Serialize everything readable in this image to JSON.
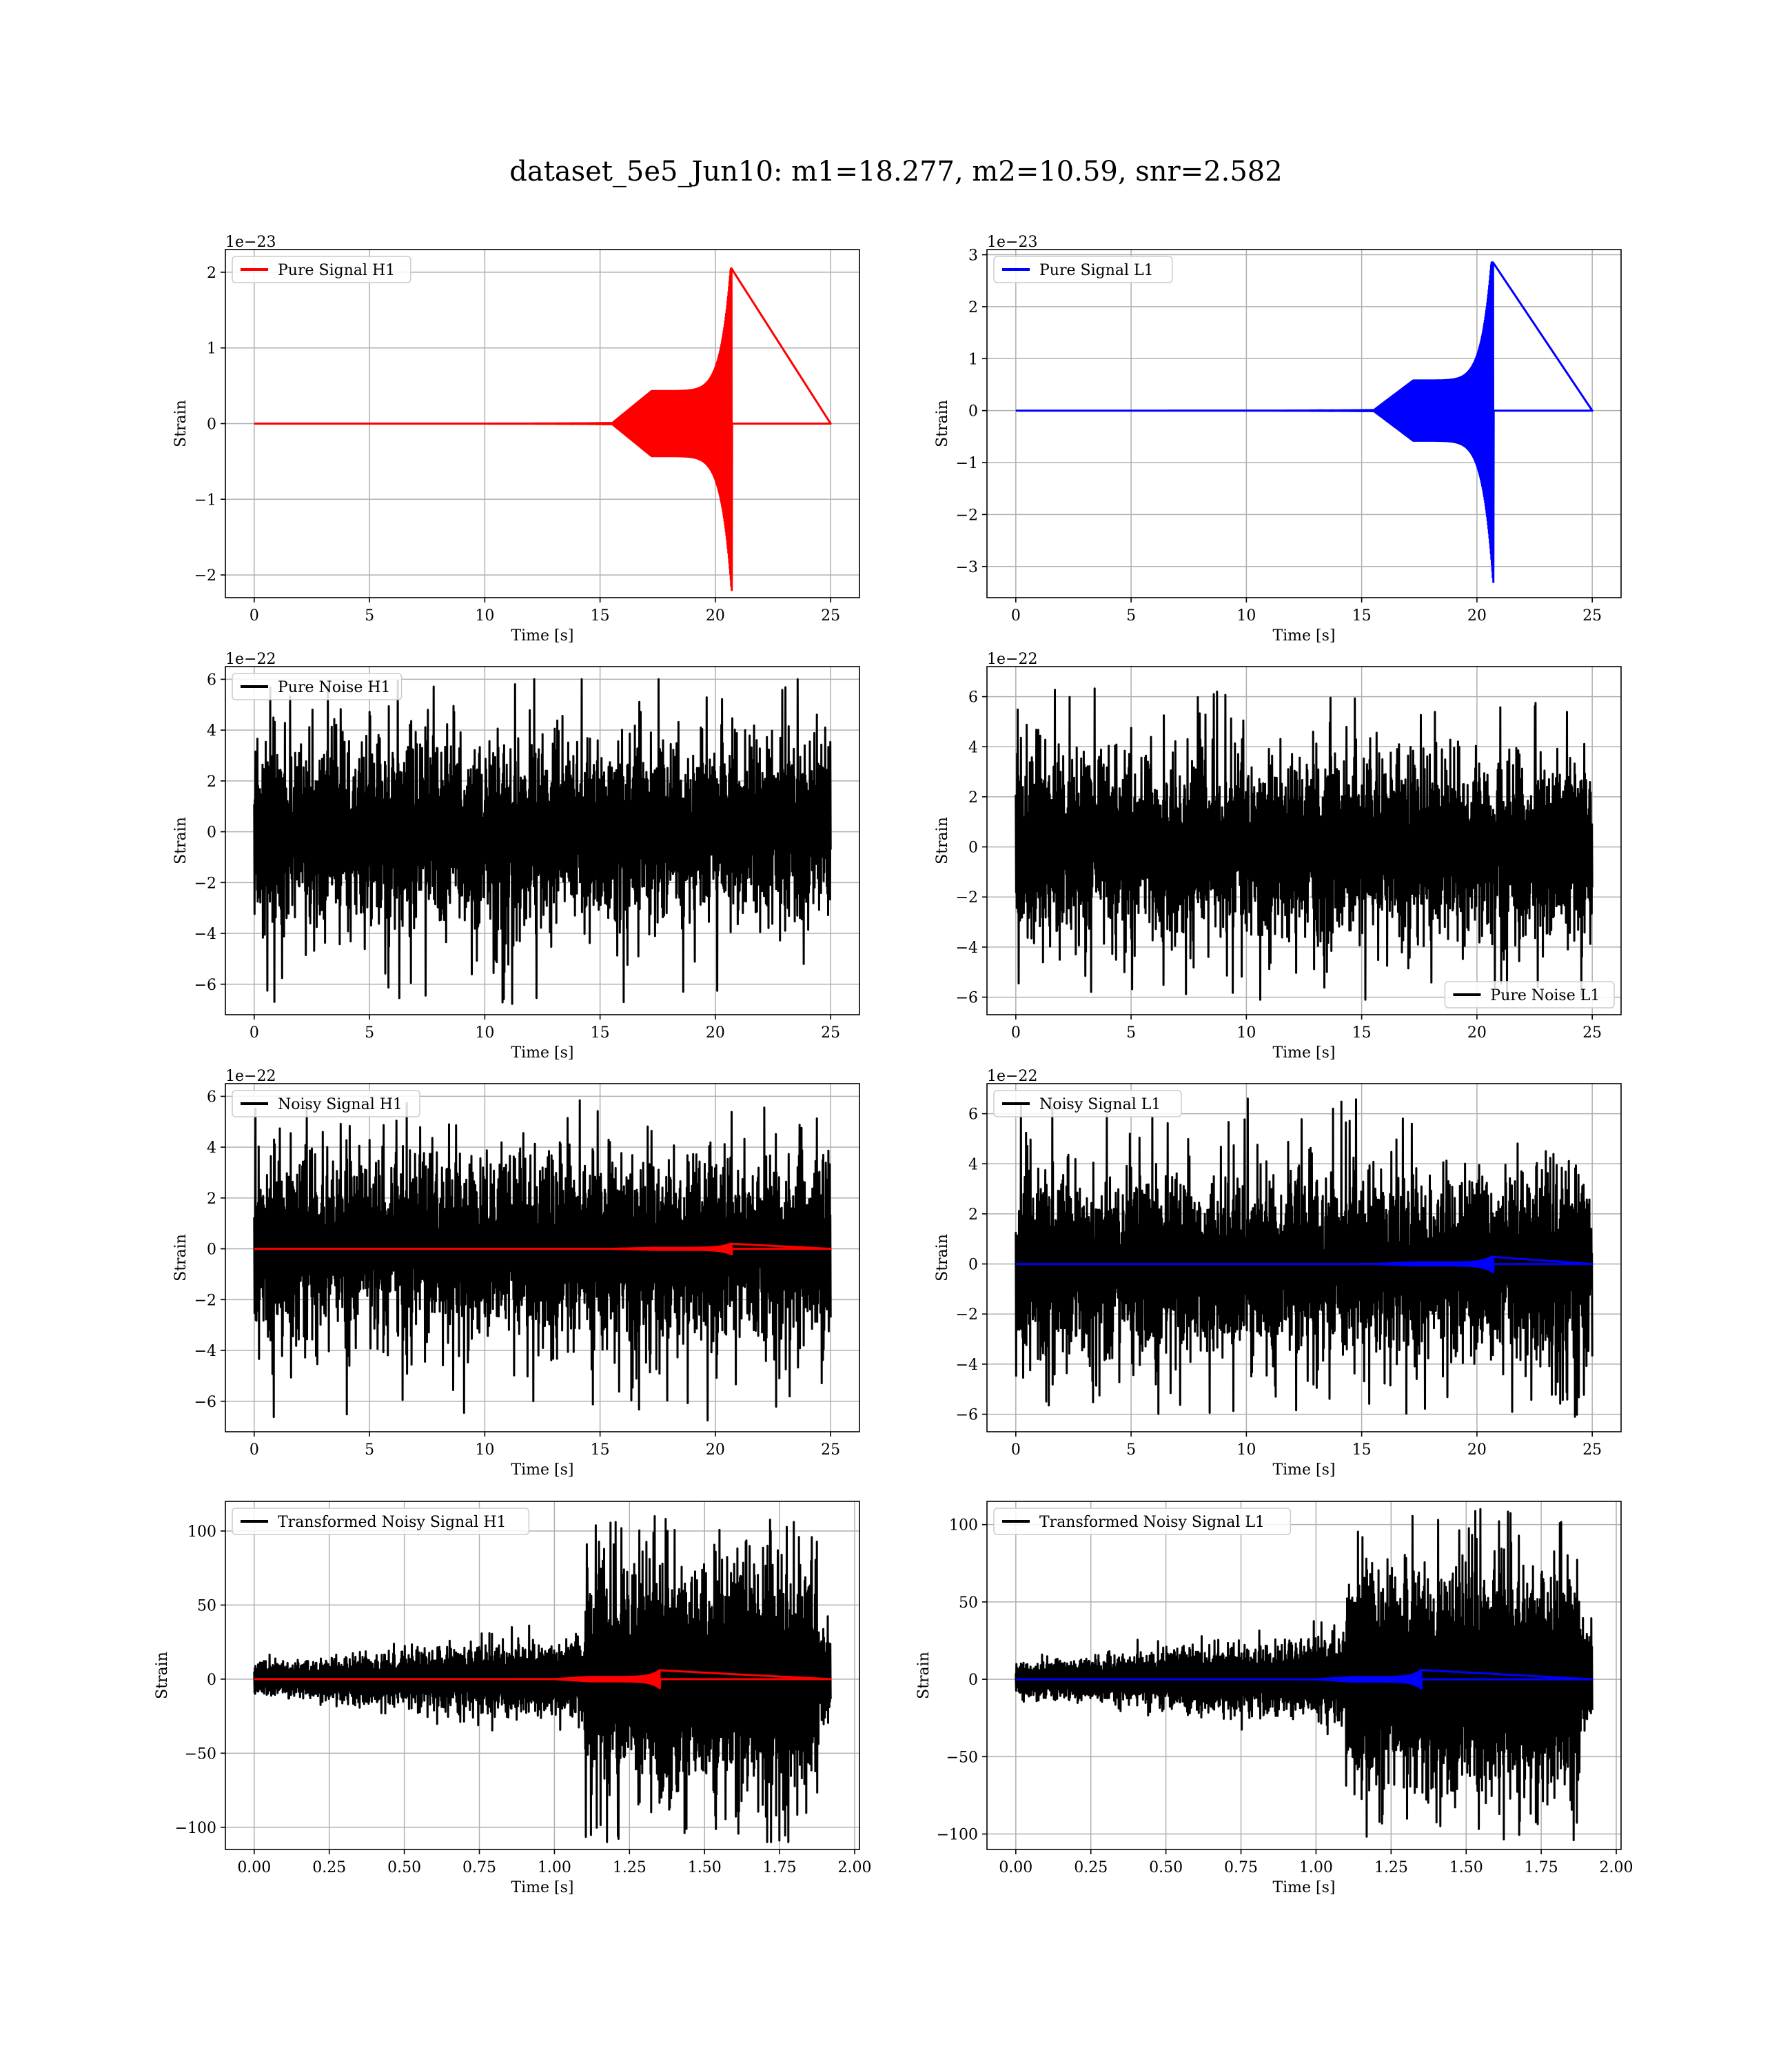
{
  "figure": {
    "suptitle": "dataset_5e5_Jun10: m1=18.277, m2=10.59, snr=2.582",
    "colors": {
      "h1_signal": "#ff0000",
      "l1_signal": "#0000ff",
      "noise": "#000000",
      "grid": "#b0b0b0"
    }
  },
  "chart_data": [
    {
      "id": "pure-signal-h1",
      "type": "line",
      "xlabel": "Time [s]",
      "ylabel": "Strain",
      "offset_text": "1e−23",
      "xlim": [
        -1.25,
        26.25
      ],
      "ylim": [
        -2.3,
        2.3
      ],
      "xticks": [
        0,
        5,
        10,
        15,
        20,
        25
      ],
      "xtick_labels": [
        "0",
        "5",
        "10",
        "15",
        "20",
        "25"
      ],
      "yticks": [
        -2,
        -1,
        0,
        1,
        2
      ],
      "ytick_labels": [
        "−2",
        "−1",
        "0",
        "1",
        "2"
      ],
      "grid": true,
      "legend_loc": "upper-left",
      "series": [
        {
          "name": "Pure Signal H1",
          "color": "#ff0000",
          "kind": "chirp",
          "x_range": [
            0,
            25
          ],
          "merger_time": 20.7,
          "peak_pos": 2.05,
          "peak_neg": -2.2,
          "plateau_start": 15.5,
          "plateau_amp": 0.43
        }
      ]
    },
    {
      "id": "pure-signal-l1",
      "type": "line",
      "xlabel": "Time [s]",
      "ylabel": "Strain",
      "offset_text": "1e−23",
      "xlim": [
        -1.25,
        26.25
      ],
      "ylim": [
        -3.6,
        3.1
      ],
      "xticks": [
        0,
        5,
        10,
        15,
        20,
        25
      ],
      "xtick_labels": [
        "0",
        "5",
        "10",
        "15",
        "20",
        "25"
      ],
      "yticks": [
        -3,
        -2,
        -1,
        0,
        1,
        2,
        3
      ],
      "ytick_labels": [
        "−3",
        "−2",
        "−1",
        "0",
        "1",
        "2",
        "3"
      ],
      "grid": true,
      "legend_loc": "upper-left",
      "series": [
        {
          "name": "Pure Signal L1",
          "color": "#0000ff",
          "kind": "chirp",
          "x_range": [
            0,
            25
          ],
          "merger_time": 20.7,
          "peak_pos": 2.85,
          "peak_neg": -3.3,
          "plateau_start": 15.5,
          "plateau_amp": 0.58
        }
      ]
    },
    {
      "id": "pure-noise-h1",
      "type": "line",
      "xlabel": "Time [s]",
      "ylabel": "Strain",
      "offset_text": "1e−22",
      "xlim": [
        -1.25,
        26.25
      ],
      "ylim": [
        -7.2,
        6.5
      ],
      "xticks": [
        0,
        5,
        10,
        15,
        20,
        25
      ],
      "xtick_labels": [
        "0",
        "5",
        "10",
        "15",
        "20",
        "25"
      ],
      "yticks": [
        -6,
        -4,
        -2,
        0,
        2,
        4,
        6
      ],
      "ytick_labels": [
        "−6",
        "−4",
        "−2",
        "0",
        "2",
        "4",
        "6"
      ],
      "grid": true,
      "legend_loc": "upper-left",
      "series": [
        {
          "name": "Pure Noise H1",
          "color": "#000000",
          "kind": "noise",
          "x_range": [
            0,
            25
          ],
          "band": 3.4,
          "max": 6.0,
          "min": -6.9
        }
      ]
    },
    {
      "id": "pure-noise-l1",
      "type": "line",
      "xlabel": "Time [s]",
      "ylabel": "Strain",
      "offset_text": "1e−22",
      "xlim": [
        -1.25,
        26.25
      ],
      "ylim": [
        -6.7,
        7.2
      ],
      "xticks": [
        0,
        5,
        10,
        15,
        20,
        25
      ],
      "xtick_labels": [
        "0",
        "5",
        "10",
        "15",
        "20",
        "25"
      ],
      "yticks": [
        -6,
        -4,
        -2,
        0,
        2,
        4,
        6
      ],
      "ytick_labels": [
        "−6",
        "−4",
        "−2",
        "0",
        "2",
        "4",
        "6"
      ],
      "grid": true,
      "legend_loc": "lower-right",
      "series": [
        {
          "name": "Pure Noise L1",
          "color": "#000000",
          "kind": "noise",
          "x_range": [
            0,
            25
          ],
          "band": 3.5,
          "max": 6.6,
          "min": -6.1
        }
      ]
    },
    {
      "id": "noisy-signal-h1",
      "type": "line",
      "xlabel": "Time [s]",
      "ylabel": "Strain",
      "offset_text": "1e−22",
      "xlim": [
        -1.25,
        26.25
      ],
      "ylim": [
        -7.2,
        6.5
      ],
      "xticks": [
        0,
        5,
        10,
        15,
        20,
        25
      ],
      "xtick_labels": [
        "0",
        "5",
        "10",
        "15",
        "20",
        "25"
      ],
      "yticks": [
        -6,
        -4,
        -2,
        0,
        2,
        4,
        6
      ],
      "ytick_labels": [
        "−6",
        "−4",
        "−2",
        "0",
        "2",
        "4",
        "6"
      ],
      "grid": true,
      "legend_loc": "upper-left",
      "series": [
        {
          "name": "Noisy Signal H1",
          "color": "#000000",
          "kind": "noise",
          "x_range": [
            0,
            25
          ],
          "band": 3.4,
          "max": 6.0,
          "min": -6.9
        },
        {
          "name": "",
          "color": "#ff0000",
          "kind": "chirp",
          "x_range": [
            0,
            25
          ],
          "merger_time": 20.7,
          "peak_pos": 0.2,
          "peak_neg": -0.22,
          "plateau_start": 15.5,
          "plateau_amp": 0.04
        }
      ]
    },
    {
      "id": "noisy-signal-l1",
      "type": "line",
      "xlabel": "Time [s]",
      "ylabel": "Strain",
      "offset_text": "1e−22",
      "xlim": [
        -1.25,
        26.25
      ],
      "ylim": [
        -6.7,
        7.2
      ],
      "xticks": [
        0,
        5,
        10,
        15,
        20,
        25
      ],
      "xtick_labels": [
        "0",
        "5",
        "10",
        "15",
        "20",
        "25"
      ],
      "yticks": [
        -6,
        -4,
        -2,
        0,
        2,
        4,
        6
      ],
      "ytick_labels": [
        "−6",
        "−4",
        "−2",
        "0",
        "2",
        "4",
        "6"
      ],
      "grid": true,
      "legend_loc": "upper-left",
      "series": [
        {
          "name": "Noisy Signal L1",
          "color": "#000000",
          "kind": "noise",
          "x_range": [
            0,
            25
          ],
          "band": 3.5,
          "max": 6.6,
          "min": -6.1
        },
        {
          "name": "",
          "color": "#0000ff",
          "kind": "chirp",
          "x_range": [
            0,
            25
          ],
          "merger_time": 20.7,
          "peak_pos": 0.28,
          "peak_neg": -0.33,
          "plateau_start": 15.5,
          "plateau_amp": 0.06
        }
      ]
    },
    {
      "id": "transformed-noisy-signal-h1",
      "type": "line",
      "xlabel": "Time [s]",
      "ylabel": "Strain",
      "offset_text": "",
      "xlim": [
        -0.096,
        2.016
      ],
      "ylim": [
        -115,
        120
      ],
      "xticks": [
        0,
        0.25,
        0.5,
        0.75,
        1.0,
        1.25,
        1.5,
        1.75,
        2.0
      ],
      "xtick_labels": [
        "0.00",
        "0.25",
        "0.50",
        "0.75",
        "1.00",
        "1.25",
        "1.50",
        "1.75",
        "2.00"
      ],
      "yticks": [
        -100,
        -50,
        0,
        50,
        100
      ],
      "ytick_labels": [
        "−100",
        "−50",
        "0",
        "50",
        "100"
      ],
      "grid": true,
      "legend_loc": "upper-left",
      "series": [
        {
          "name": "Transformed Noisy Signal H1",
          "color": "#000000",
          "kind": "transformed",
          "x_range": [
            0,
            1.92
          ],
          "low_amp_start": 6,
          "low_amp_end": 22,
          "burst_start": 1.1,
          "burst_end": 1.88,
          "burst_band": 40,
          "max": 110,
          "min": -110
        },
        {
          "name": "",
          "color": "#ff0000",
          "kind": "chirp",
          "x_range": [
            0,
            1.92
          ],
          "merger_time": 1.35,
          "peak_pos": 6,
          "peak_neg": -6,
          "plateau_start": 1.0,
          "plateau_amp": 1.5
        }
      ]
    },
    {
      "id": "transformed-noisy-signal-l1",
      "type": "line",
      "xlabel": "Time [s]",
      "ylabel": "Strain",
      "offset_text": "",
      "xlim": [
        -0.096,
        2.016
      ],
      "ylim": [
        -110,
        115
      ],
      "xticks": [
        0,
        0.25,
        0.5,
        0.75,
        1.0,
        1.25,
        1.5,
        1.75,
        2.0
      ],
      "xtick_labels": [
        "0.00",
        "0.25",
        "0.50",
        "0.75",
        "1.00",
        "1.25",
        "1.50",
        "1.75",
        "2.00"
      ],
      "yticks": [
        -100,
        -50,
        0,
        50,
        100
      ],
      "ytick_labels": [
        "−100",
        "−50",
        "0",
        "50",
        "100"
      ],
      "grid": true,
      "legend_loc": "upper-left",
      "series": [
        {
          "name": "Transformed Noisy Signal L1",
          "color": "#000000",
          "kind": "transformed",
          "x_range": [
            0,
            1.92
          ],
          "low_amp_start": 6,
          "low_amp_end": 22,
          "burst_start": 1.1,
          "burst_end": 1.88,
          "burst_band": 40,
          "max": 110,
          "min": -104
        },
        {
          "name": "",
          "color": "#0000ff",
          "kind": "chirp",
          "x_range": [
            0,
            1.92
          ],
          "merger_time": 1.35,
          "peak_pos": 6,
          "peak_neg": -6,
          "plateau_start": 1.0,
          "plateau_amp": 1.5
        }
      ]
    }
  ]
}
